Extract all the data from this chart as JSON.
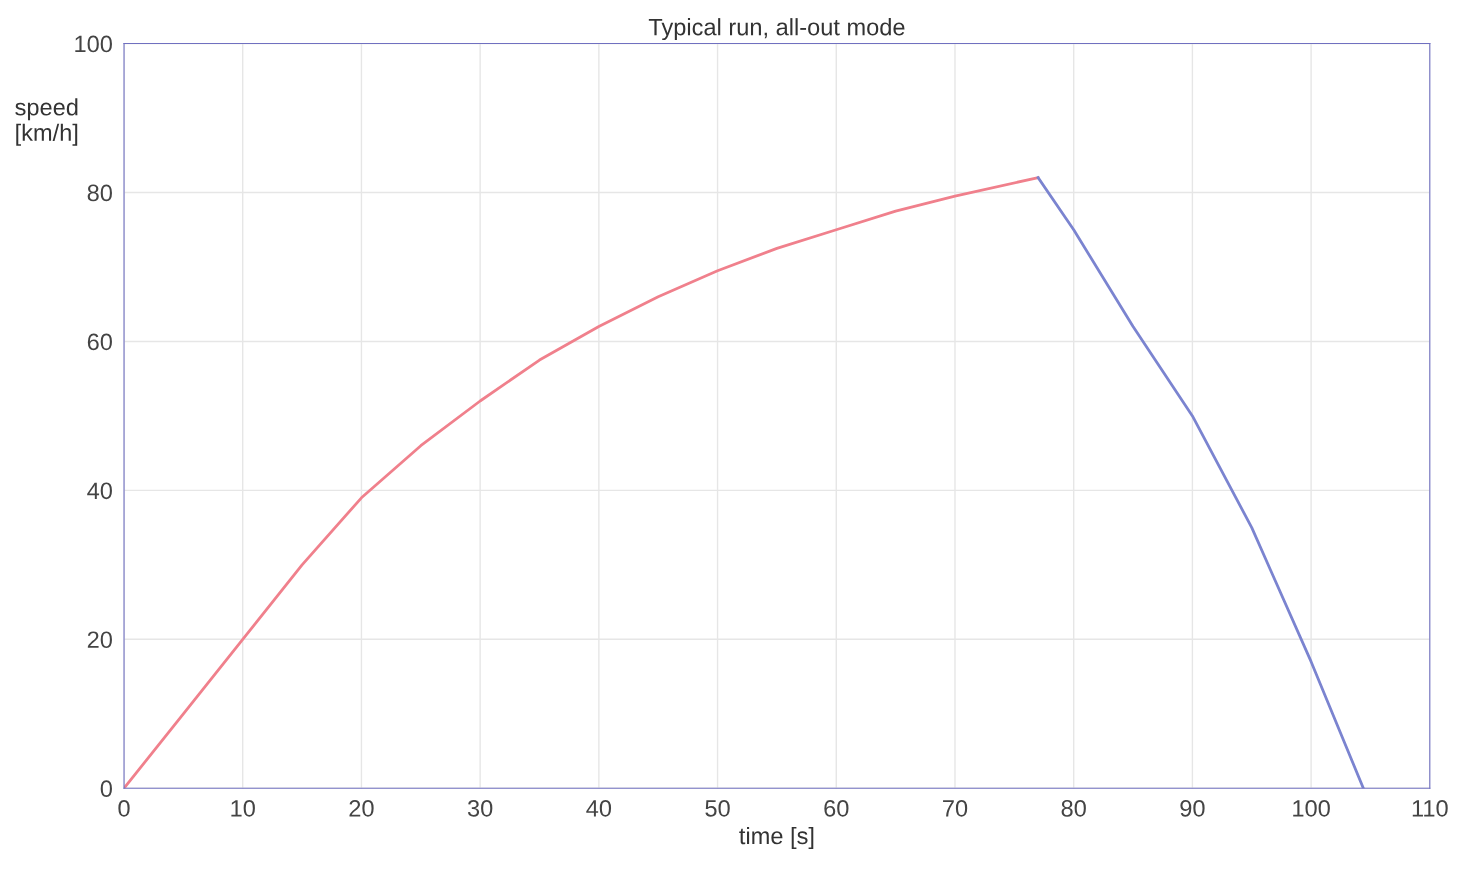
{
  "chart_data": {
    "type": "line",
    "title": "Typical run, all-out mode",
    "xlabel": "time [s]",
    "ylabel": "speed\n[km/h]",
    "xlim": [
      0,
      110
    ],
    "xticks": [
      0,
      10,
      20,
      30,
      40,
      50,
      60,
      70,
      80,
      90,
      100,
      110
    ],
    "ylim": [
      0,
      100
    ],
    "yticks": [
      0,
      20,
      40,
      60,
      80,
      100
    ],
    "grid": true,
    "marker": "none",
    "line_style": "solid",
    "series": [
      {
        "color": "#f0808c",
        "x": [
          0,
          5,
          10,
          15,
          20,
          25,
          30,
          35,
          40,
          45,
          50,
          55,
          60,
          65,
          70,
          77
        ],
        "values": [
          0,
          10,
          20,
          30,
          39,
          46,
          52,
          57.5,
          62,
          66,
          69.5,
          72.5,
          75,
          77.5,
          79.5,
          82
        ]
      },
      {
        "color": "#7b84d0",
        "x": [
          77,
          80,
          85,
          90,
          95,
          100,
          104.4
        ],
        "values": [
          82,
          75,
          62,
          50,
          35,
          17,
          0
        ]
      }
    ]
  }
}
